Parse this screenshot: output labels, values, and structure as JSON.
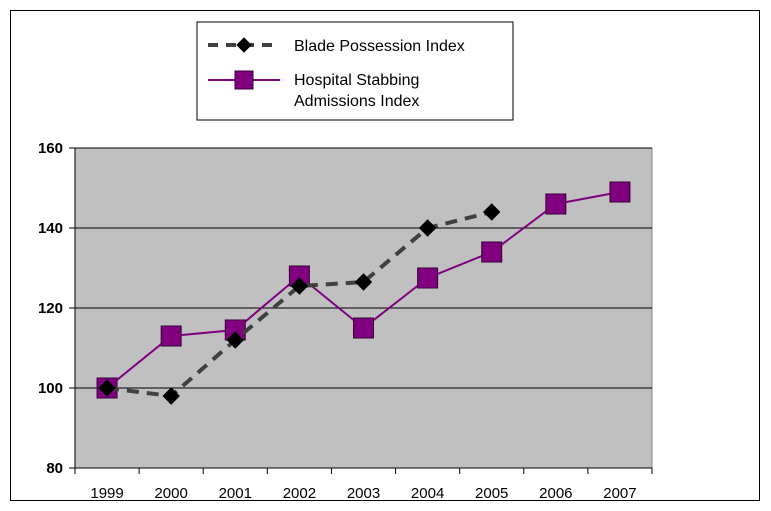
{
  "chart_data": {
    "type": "line",
    "categories": [
      "1999",
      "2000",
      "2001",
      "2002",
      "2003",
      "2004",
      "2005",
      "2006",
      "2007"
    ],
    "ylim": [
      80,
      160
    ],
    "yticks": [
      80,
      100,
      120,
      140,
      160
    ],
    "grid": true,
    "legend_position": "top",
    "plot_background": "#c0c0c0",
    "series": [
      {
        "name": "Blade Possession Index",
        "name_lines": [
          "Blade Possession Index"
        ],
        "values": [
          100,
          98,
          112,
          125.5,
          126.5,
          140,
          144,
          null,
          null
        ],
        "color": "#000000",
        "marker": "diamond",
        "line": "dashed"
      },
      {
        "name": "Hospital Stabbing Admissions Index",
        "name_lines": [
          "Hospital Stabbing",
          "Admissions Index"
        ],
        "values": [
          100,
          113,
          114.5,
          128,
          115,
          127.5,
          134,
          146,
          149
        ],
        "color": "#800080",
        "marker": "square",
        "line": "solid"
      }
    ]
  }
}
